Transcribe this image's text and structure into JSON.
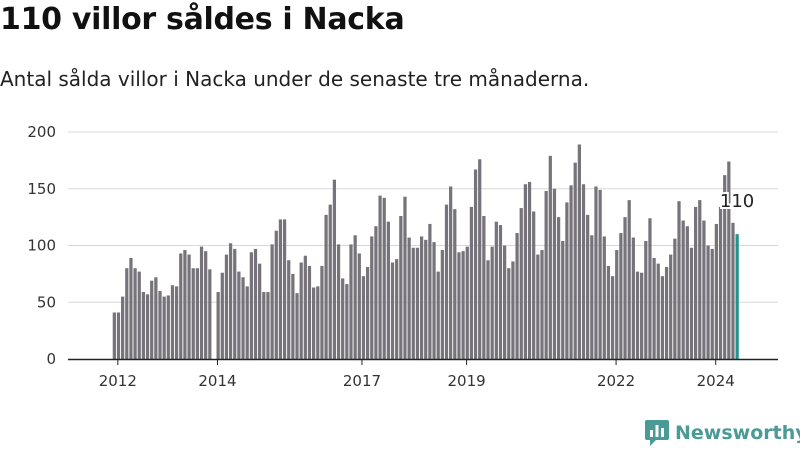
{
  "header": {
    "title": "110 villor såldes i Nacka",
    "subtitle": "Antal sålda villor i Nacka under de senaste tre månaderna."
  },
  "brand": {
    "name": "Newsworthy"
  },
  "colors": {
    "bar": "#76747a",
    "highlight": "#23928e",
    "grid": "#d8d8d8",
    "axis": "#222222",
    "brand": "#4a9a96"
  },
  "chart_data": {
    "type": "bar",
    "title": "110 villor såldes i Nacka",
    "subtitle": "Antal sålda villor i Nacka under de senaste tre månaderna.",
    "xlabel": "",
    "ylabel": "",
    "ylim": [
      0,
      200
    ],
    "yticks": [
      0,
      50,
      100,
      150,
      200
    ],
    "grid": true,
    "period": "monthly, rolling three months",
    "xlim_years": [
      2011.0,
      2025.25
    ],
    "xticks": [
      {
        "label": "2012",
        "year": 2012.0
      },
      {
        "label": "2014",
        "year": 2014.0
      },
      {
        "label": "2017",
        "year": 2016.9
      },
      {
        "label": "2019",
        "year": 2019.0
      },
      {
        "label": "2022",
        "year": 2022.0
      },
      {
        "label": "2024",
        "year": 2024.0
      }
    ],
    "start_year": 2011.93,
    "last_label": "110",
    "values": [
      41,
      41,
      55,
      80,
      89,
      80,
      77,
      59,
      57,
      69,
      72,
      60,
      55,
      56,
      65,
      64,
      93,
      96,
      92,
      80,
      80,
      99,
      95,
      79,
      0,
      59,
      76,
      92,
      102,
      97,
      77,
      72,
      64,
      94,
      97,
      84,
      59,
      59,
      101,
      113,
      123,
      123,
      87,
      75,
      58,
      85,
      91,
      82,
      63,
      64,
      82,
      127,
      136,
      158,
      101,
      71,
      66,
      101,
      109,
      93,
      73,
      81,
      108,
      117,
      144,
      142,
      121,
      85,
      88,
      126,
      143,
      107,
      98,
      98,
      108,
      105,
      119,
      103,
      77,
      96,
      136,
      152,
      132,
      94,
      95,
      99,
      134,
      167,
      176,
      126,
      87,
      99,
      121,
      118,
      100,
      80,
      86,
      111,
      133,
      154,
      156,
      130,
      92,
      96,
      148,
      179,
      150,
      125,
      104,
      138,
      153,
      173,
      189,
      154,
      127,
      109,
      152,
      149,
      108,
      82,
      73,
      96,
      111,
      125,
      140,
      107,
      77,
      76,
      104,
      124,
      89,
      84,
      73,
      81,
      92,
      106,
      139,
      122,
      117,
      98,
      134,
      140,
      122,
      100,
      97,
      119,
      134,
      162,
      174,
      120,
      110
    ]
  }
}
